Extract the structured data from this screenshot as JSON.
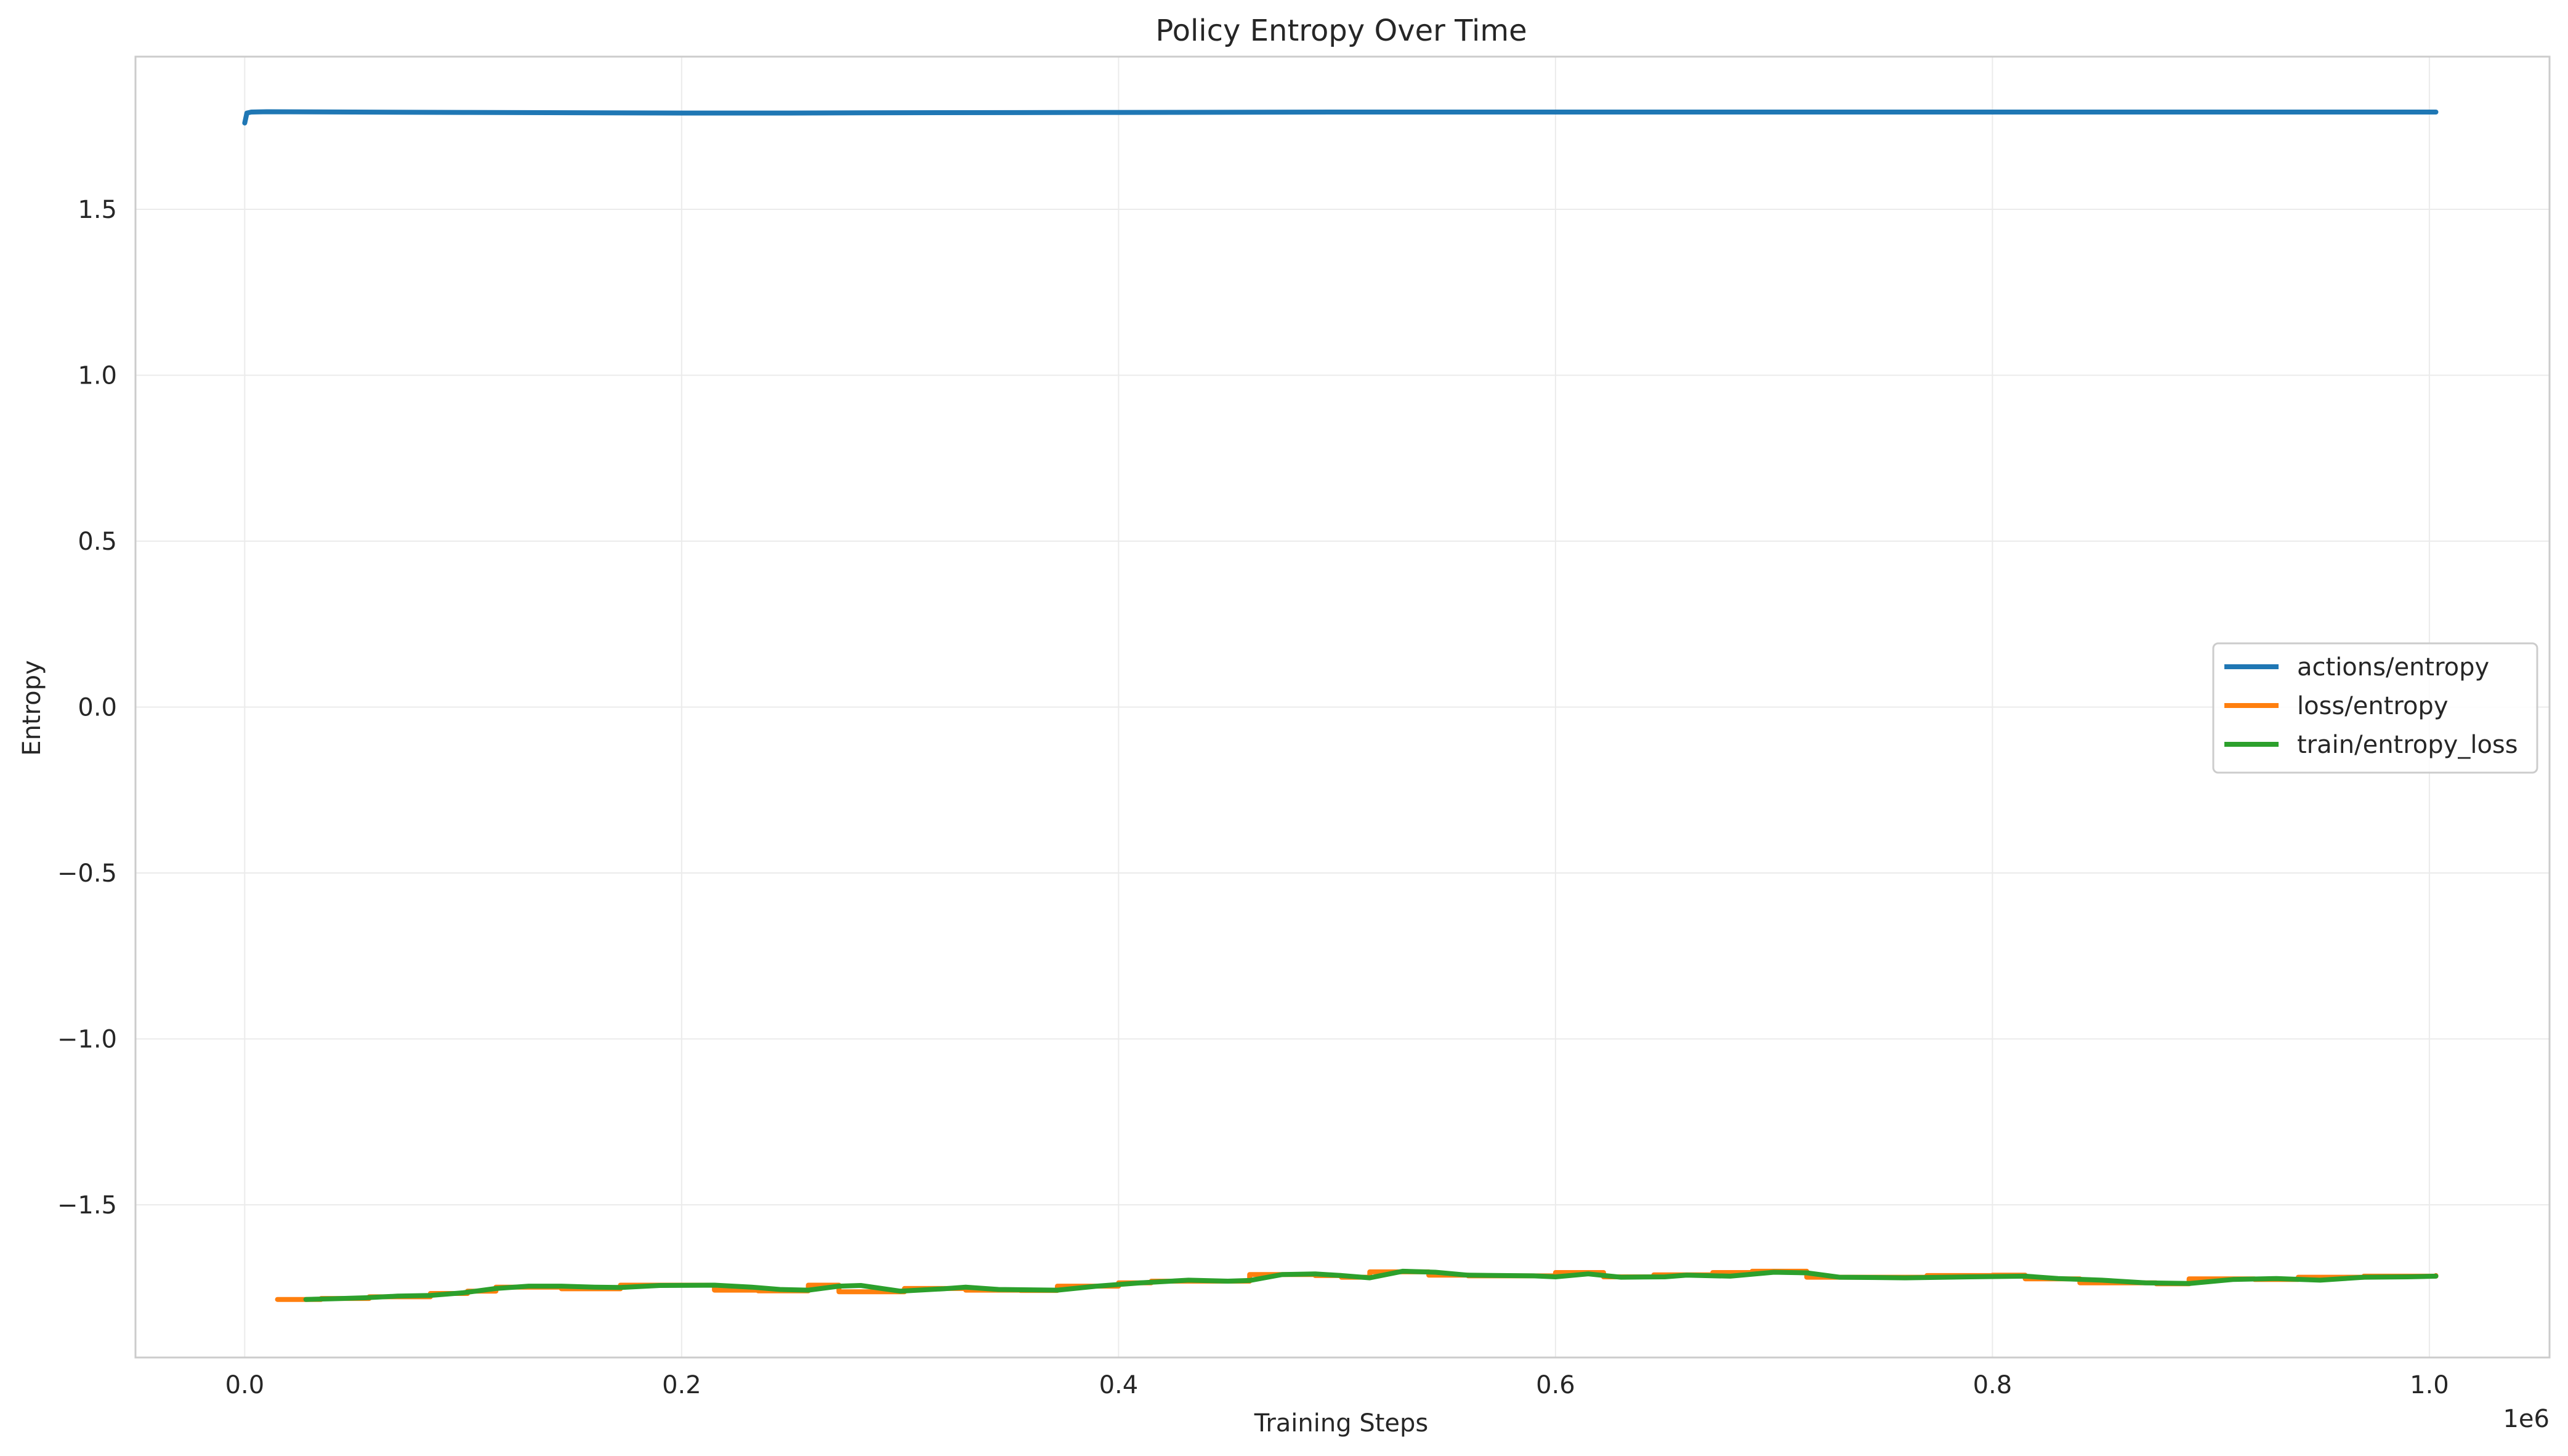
{
  "chart_data": {
    "type": "line",
    "title": "Policy Entropy Over Time",
    "xlabel": "Training Steps",
    "ylabel": "Entropy",
    "x_offset_label": "1e6",
    "xlim": [
      -50000,
      1055000
    ],
    "ylim": [
      -1.96,
      1.96
    ],
    "xticks": [
      0.0,
      0.2,
      0.4,
      0.6,
      0.8,
      1.0
    ],
    "xtick_labels": [
      "0.0",
      "0.2",
      "0.4",
      "0.6",
      "0.8",
      "1.0"
    ],
    "yticks": [
      -1.5,
      -1.0,
      -0.5,
      0.0,
      0.5,
      1.0,
      1.5
    ],
    "ytick_labels": [
      "−1.5",
      "−1.0",
      "−0.5",
      "0.0",
      "0.5",
      "1.0",
      "1.5"
    ],
    "grid": true,
    "legend_position": "center-right",
    "series": [
      {
        "name": "actions/entropy",
        "color": "#1f77b4",
        "step": false,
        "x": [
          0,
          1000,
          3000,
          10000,
          50000,
          100000,
          150000,
          200000,
          250000,
          300000,
          400000,
          500000,
          600000,
          700000,
          800000,
          900000,
          1003000
        ],
        "y": [
          1.76,
          1.79,
          1.793,
          1.794,
          1.793,
          1.792,
          1.791,
          1.79,
          1.79,
          1.791,
          1.792,
          1.793,
          1.793,
          1.793,
          1.793,
          1.793,
          1.793
        ]
      },
      {
        "name": "loss/entropy",
        "color": "#ff7f0e",
        "step": true,
        "x": [
          15000,
          35000,
          57000,
          85000,
          102000,
          115000,
          145000,
          172000,
          205000,
          215000,
          235000,
          258000,
          272000,
          290000,
          302000,
          330000,
          355000,
          372000,
          400000,
          415000,
          432000,
          460000,
          490000,
          502000,
          515000,
          542000,
          560000,
          600000,
          622000,
          645000,
          672000,
          690000,
          715000,
          740000,
          770000,
          800000,
          815000,
          840000,
          875000,
          890000,
          920000,
          940000,
          970000,
          1003000
        ],
        "y": [
          -1.785,
          -1.782,
          -1.777,
          -1.767,
          -1.76,
          -1.748,
          -1.753,
          -1.742,
          -1.742,
          -1.757,
          -1.759,
          -1.742,
          -1.762,
          -1.762,
          -1.752,
          -1.757,
          -1.758,
          -1.745,
          -1.735,
          -1.73,
          -1.73,
          -1.71,
          -1.713,
          -1.718,
          -1.702,
          -1.712,
          -1.714,
          -1.704,
          -1.717,
          -1.711,
          -1.704,
          -1.7,
          -1.718,
          -1.718,
          -1.713,
          -1.712,
          -1.723,
          -1.735,
          -1.738,
          -1.723,
          -1.725,
          -1.718,
          -1.715,
          -1.713
        ]
      },
      {
        "name": "train/entropy_loss",
        "color": "#2ca02c",
        "step": false,
        "x": [
          28000,
          40000,
          55000,
          70000,
          85000,
          100000,
          115000,
          130000,
          145000,
          160000,
          172000,
          190000,
          215000,
          232000,
          245000,
          258000,
          272000,
          282000,
          300000,
          320000,
          330000,
          345000,
          372000,
          390000,
          410000,
          432000,
          450000,
          460000,
          475000,
          490000,
          502000,
          515000,
          530000,
          545000,
          560000,
          590000,
          600000,
          615000,
          630000,
          650000,
          660000,
          680000,
          700000,
          715000,
          730000,
          760000,
          790000,
          815000,
          830000,
          850000,
          870000,
          890000,
          910000,
          930000,
          950000,
          970000,
          990000,
          1003000
        ],
        "y": [
          -1.785,
          -1.783,
          -1.78,
          -1.775,
          -1.773,
          -1.765,
          -1.752,
          -1.745,
          -1.745,
          -1.748,
          -1.749,
          -1.743,
          -1.742,
          -1.748,
          -1.755,
          -1.757,
          -1.745,
          -1.743,
          -1.76,
          -1.753,
          -1.748,
          -1.755,
          -1.757,
          -1.745,
          -1.735,
          -1.727,
          -1.73,
          -1.728,
          -1.71,
          -1.708,
          -1.713,
          -1.72,
          -1.7,
          -1.703,
          -1.712,
          -1.714,
          -1.717,
          -1.708,
          -1.718,
          -1.717,
          -1.712,
          -1.715,
          -1.703,
          -1.705,
          -1.718,
          -1.72,
          -1.717,
          -1.715,
          -1.722,
          -1.727,
          -1.735,
          -1.737,
          -1.725,
          -1.722,
          -1.727,
          -1.718,
          -1.717,
          -1.715
        ]
      }
    ]
  }
}
